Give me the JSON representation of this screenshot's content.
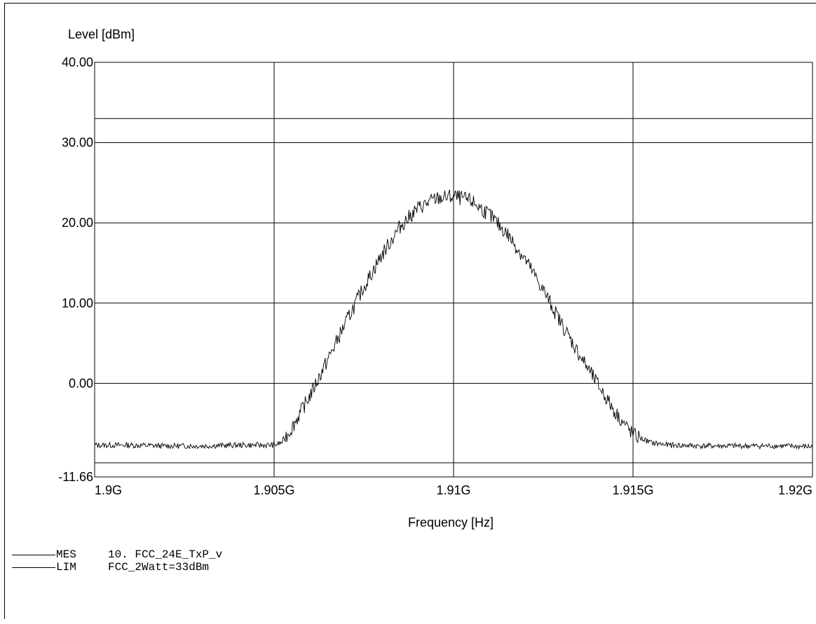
{
  "chart_data": {
    "type": "line",
    "ylabel": "Level [dBm]",
    "xlabel": "Frequency [Hz]",
    "xlim": [
      1.9,
      1.92
    ],
    "ylim": [
      -11.66,
      40.0
    ],
    "y_ticks": [
      {
        "value": 40.0,
        "label": "40.00"
      },
      {
        "value": 30.0,
        "label": "30.00"
      },
      {
        "value": 20.0,
        "label": "20.00"
      },
      {
        "value": 10.0,
        "label": "10.00"
      },
      {
        "value": 0.0,
        "label": "0.00"
      },
      {
        "value": -11.66,
        "label": "-11.66"
      }
    ],
    "x_ticks": [
      {
        "value": 1.9,
        "label": "1.9G"
      },
      {
        "value": 1.905,
        "label": "1.905G"
      },
      {
        "value": 1.91,
        "label": "1.91G"
      },
      {
        "value": 1.915,
        "label": "1.915G"
      },
      {
        "value": 1.92,
        "label": "1.92G"
      }
    ],
    "grid": true,
    "series": [
      {
        "name": "MES",
        "x": [
          1.9,
          1.901,
          1.902,
          1.903,
          1.904,
          1.905,
          1.9052,
          1.9055,
          1.906,
          1.9065,
          1.907,
          1.9075,
          1.908,
          1.9085,
          1.909,
          1.9095,
          1.91,
          1.9105,
          1.911,
          1.9115,
          1.912,
          1.9125,
          1.913,
          1.9135,
          1.914,
          1.9145,
          1.915,
          1.9155,
          1.916,
          1.917,
          1.918,
          1.919,
          1.92
        ],
        "values": [
          -7.7,
          -7.7,
          -7.8,
          -7.8,
          -7.7,
          -7.7,
          -7.4,
          -5.5,
          -1.5,
          3.0,
          7.6,
          12.0,
          16.0,
          19.5,
          21.8,
          23.0,
          23.3,
          22.7,
          21.0,
          18.6,
          15.4,
          11.6,
          7.5,
          3.6,
          0.0,
          -3.6,
          -6.4,
          -7.4,
          -7.7,
          -7.8,
          -7.8,
          -7.8,
          -7.9
        ]
      },
      {
        "name": "LIM",
        "x": [
          1.9,
          1.92
        ],
        "values": [
          33.0,
          33.0
        ]
      }
    ],
    "lower_reference": -9.9
  },
  "legend": [
    {
      "code": "MES",
      "desc": "10. FCC_24E_TxP_v"
    },
    {
      "code": "LIM",
      "desc": "FCC_2Watt=33dBm"
    }
  ]
}
